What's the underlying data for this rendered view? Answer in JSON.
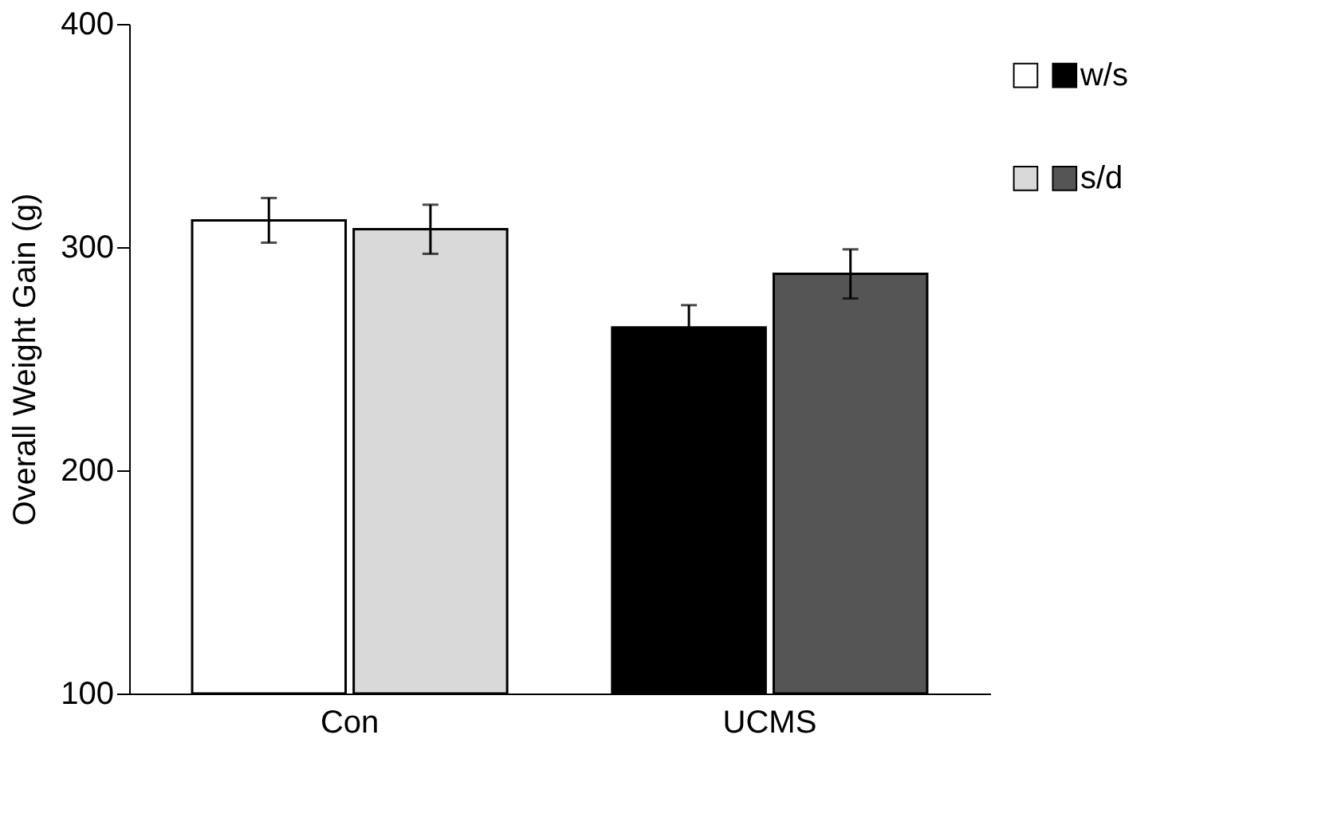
{
  "chart_data": {
    "type": "bar",
    "ylabel": "Overall Weight Gain (g)",
    "categories": [
      "Con",
      "UCMS"
    ],
    "series": [
      {
        "name": "w/s",
        "colors": [
          "#ffffff",
          "#000000"
        ],
        "values": [
          312,
          264
        ],
        "errors": [
          10,
          10
        ]
      },
      {
        "name": "s/d",
        "colors": [
          "#d9d9d9",
          "#555555"
        ],
        "values": [
          308,
          288
        ],
        "errors": [
          11,
          11
        ]
      }
    ],
    "ylim": [
      100,
      400
    ],
    "yticks": [
      100,
      200,
      300,
      400
    ],
    "grid": false,
    "legend": "top right"
  }
}
